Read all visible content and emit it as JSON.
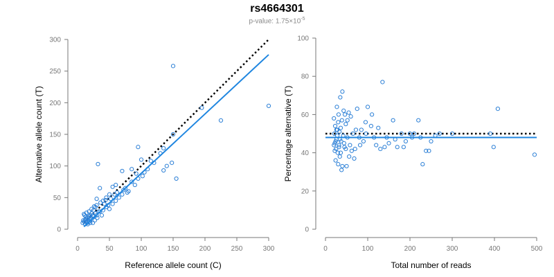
{
  "header": {
    "title": "rs4664301",
    "pvalue_prefix": "p-value: 1.75×10",
    "pvalue_exponent": "-5"
  },
  "colors": {
    "points": "#2b7fd6",
    "fit": "#1f86e0",
    "reference": "#000000",
    "axis": "#777777"
  },
  "chart_data": [
    {
      "type": "scatter",
      "xlabel": "Reference allele count (C)",
      "ylabel": "Alternative allele count (T)",
      "xlim": [
        0,
        300
      ],
      "ylim": [
        0,
        300
      ],
      "xticks": [
        0,
        50,
        100,
        150,
        200,
        250,
        300
      ],
      "yticks": [
        0,
        50,
        100,
        150,
        200,
        250,
        300
      ],
      "reference_line": {
        "style": "dotted",
        "from": [
          10,
          10
        ],
        "to": [
          300,
          300
        ]
      },
      "fit_line": {
        "from": [
          10,
          4
        ],
        "to": [
          300,
          276
        ]
      },
      "points": [
        [
          150,
          258
        ],
        [
          300,
          195
        ],
        [
          225,
          172
        ],
        [
          195,
          192
        ],
        [
          150,
          150
        ],
        [
          135,
          128
        ],
        [
          148,
          105
        ],
        [
          140,
          100
        ],
        [
          135,
          93
        ],
        [
          155,
          80
        ],
        [
          100,
          110
        ],
        [
          105,
          90
        ],
        [
          95,
          80
        ],
        [
          90,
          70
        ],
        [
          95,
          130
        ],
        [
          85,
          95
        ],
        [
          75,
          65
        ],
        [
          80,
          60
        ],
        [
          70,
          92
        ],
        [
          60,
          70
        ],
        [
          55,
          67
        ],
        [
          58,
          55
        ],
        [
          50,
          55
        ],
        [
          45,
          50
        ],
        [
          40,
          45
        ],
        [
          35,
          65
        ],
        [
          32,
          103
        ],
        [
          30,
          48
        ],
        [
          28,
          35
        ],
        [
          25,
          30
        ],
        [
          22,
          25
        ],
        [
          20,
          22
        ],
        [
          18,
          20
        ],
        [
          15,
          18
        ],
        [
          12,
          15
        ],
        [
          10,
          12
        ],
        [
          8,
          10
        ],
        [
          12,
          8
        ],
        [
          15,
          10
        ],
        [
          18,
          12
        ],
        [
          20,
          15
        ],
        [
          25,
          20
        ],
        [
          30,
          22
        ],
        [
          35,
          28
        ],
        [
          40,
          30
        ],
        [
          45,
          35
        ],
        [
          50,
          32
        ],
        [
          55,
          40
        ],
        [
          60,
          45
        ],
        [
          65,
          50
        ],
        [
          70,
          55
        ],
        [
          78,
          58
        ],
        [
          85,
          75
        ],
        [
          110,
          95
        ],
        [
          120,
          105
        ],
        [
          130,
          120
        ],
        [
          115,
          108
        ],
        [
          102,
          84
        ],
        [
          92,
          88
        ],
        [
          72,
          62
        ],
        [
          62,
          58
        ],
        [
          48,
          38
        ],
        [
          42,
          40
        ],
        [
          38,
          22
        ],
        [
          33,
          28
        ],
        [
          28,
          25
        ],
        [
          24,
          22
        ],
        [
          21,
          18
        ],
        [
          19,
          16
        ],
        [
          17,
          14
        ],
        [
          16,
          12
        ],
        [
          14,
          16
        ],
        [
          13,
          20
        ],
        [
          11,
          22
        ],
        [
          9,
          14
        ],
        [
          10,
          24
        ],
        [
          14,
          26
        ],
        [
          18,
          28
        ],
        [
          22,
          32
        ],
        [
          26,
          36
        ],
        [
          30,
          38
        ],
        [
          36,
          42
        ],
        [
          44,
          46
        ],
        [
          52,
          48
        ],
        [
          24,
          10
        ],
        [
          27,
          14
        ],
        [
          31,
          18
        ],
        [
          16,
          8
        ],
        [
          20,
          10
        ],
        [
          13,
          12
        ]
      ]
    },
    {
      "type": "scatter",
      "xlabel": "Total number of reads",
      "ylabel": "Percentage alternative (T)",
      "xlim": [
        0,
        500
      ],
      "ylim": [
        0,
        100
      ],
      "xticks": [
        0,
        100,
        200,
        300,
        400,
        500
      ],
      "yticks": [
        0,
        20,
        40,
        60,
        80,
        100
      ],
      "reference_line": {
        "style": "dotted",
        "y": 50
      },
      "fit_line": {
        "y": 48
      },
      "points": [
        [
          135,
          77
        ],
        [
          408,
          63
        ],
        [
          495,
          39
        ],
        [
          398,
          43
        ],
        [
          390,
          50
        ],
        [
          300,
          50
        ],
        [
          260,
          49
        ],
        [
          245,
          41
        ],
        [
          238,
          41
        ],
        [
          230,
          34
        ],
        [
          225,
          48
        ],
        [
          220,
          57
        ],
        [
          210,
          50
        ],
        [
          200,
          50
        ],
        [
          190,
          46
        ],
        [
          180,
          50
        ],
        [
          170,
          43
        ],
        [
          160,
          57
        ],
        [
          150,
          45
        ],
        [
          140,
          43
        ],
        [
          130,
          42
        ],
        [
          125,
          53
        ],
        [
          120,
          44
        ],
        [
          110,
          60
        ],
        [
          100,
          64
        ],
        [
          95,
          56
        ],
        [
          90,
          46
        ],
        [
          85,
          52
        ],
        [
          80,
          48
        ],
        [
          75,
          63
        ],
        [
          70,
          42
        ],
        [
          68,
          37
        ],
        [
          65,
          50
        ],
        [
          60,
          59
        ],
        [
          58,
          44
        ],
        [
          55,
          61
        ],
        [
          52,
          48
        ],
        [
          50,
          33
        ],
        [
          48,
          55
        ],
        [
          46,
          60
        ],
        [
          45,
          43
        ],
        [
          43,
          62
        ],
        [
          42,
          49
        ],
        [
          40,
          72
        ],
        [
          39,
          57
        ],
        [
          38,
          31
        ],
        [
          37,
          46
        ],
        [
          36,
          53
        ],
        [
          35,
          69
        ],
        [
          34,
          38
        ],
        [
          33,
          51
        ],
        [
          32,
          44
        ],
        [
          31,
          60
        ],
        [
          30,
          56
        ],
        [
          29,
          40
        ],
        [
          28,
          52
        ],
        [
          27,
          64
        ],
        [
          26,
          47
        ],
        [
          25,
          42
        ],
        [
          24,
          36
        ],
        [
          23,
          54
        ],
        [
          22,
          45
        ],
        [
          21,
          50
        ],
        [
          20,
          44
        ],
        [
          20,
          58
        ],
        [
          22,
          41
        ],
        [
          24,
          46
        ],
        [
          26,
          52
        ],
        [
          28,
          49
        ],
        [
          30,
          34
        ],
        [
          32,
          43
        ],
        [
          34,
          47
        ],
        [
          36,
          40
        ],
        [
          40,
          33
        ],
        [
          44,
          45
        ],
        [
          48,
          42
        ],
        [
          52,
          57
        ],
        [
          56,
          38
        ],
        [
          62,
          41
        ],
        [
          72,
          52
        ],
        [
          82,
          44
        ],
        [
          96,
          50
        ],
        [
          108,
          54
        ],
        [
          115,
          48
        ],
        [
          145,
          48
        ],
        [
          165,
          47
        ],
        [
          185,
          43
        ],
        [
          205,
          48
        ],
        [
          250,
          46
        ],
        [
          270,
          50
        ]
      ]
    }
  ]
}
